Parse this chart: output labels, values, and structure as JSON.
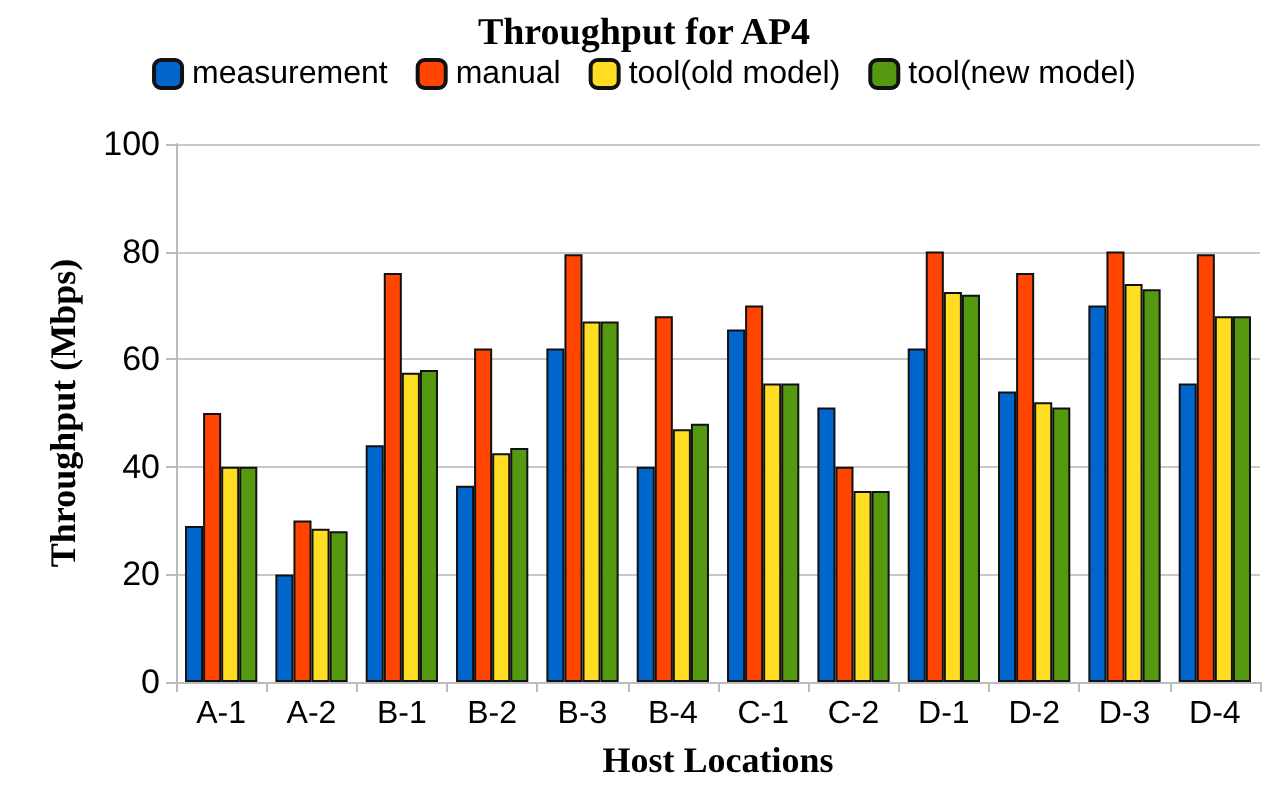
{
  "chart_data": {
    "type": "bar",
    "title": "Throughput for AP4",
    "xlabel": "Host Locations",
    "ylabel": "Throughput (Mbps)",
    "categories": [
      "A-1",
      "A-2",
      "B-1",
      "B-2",
      "B-3",
      "B-4",
      "C-1",
      "C-2",
      "D-1",
      "D-2",
      "D-3",
      "D-4"
    ],
    "series": [
      {
        "name": "measurement",
        "color": "#0066cc",
        "values": [
          29,
          20,
          44,
          36.5,
          62,
          40,
          65.5,
          51,
          62,
          54,
          70,
          55.5
        ]
      },
      {
        "name": "manual",
        "color": "#ff4500",
        "values": [
          50,
          30,
          76,
          62,
          79.5,
          68,
          70,
          40,
          80,
          76,
          80,
          79.5
        ]
      },
      {
        "name": "tool(old model)",
        "color": "#ffdd22",
        "values": [
          40,
          28.5,
          57.5,
          42.5,
          67,
          47,
          55.5,
          35.5,
          72.5,
          52,
          74,
          68
        ]
      },
      {
        "name": "tool(new model)",
        "color": "#559911",
        "values": [
          40,
          28,
          58,
          43.5,
          67,
          48,
          55.5,
          35.5,
          72,
          51,
          73,
          68
        ]
      }
    ],
    "ylim": [
      0,
      100
    ],
    "yticks": [
      0,
      20,
      40,
      60,
      80,
      100
    ],
    "grid": "y",
    "legend": "top"
  }
}
